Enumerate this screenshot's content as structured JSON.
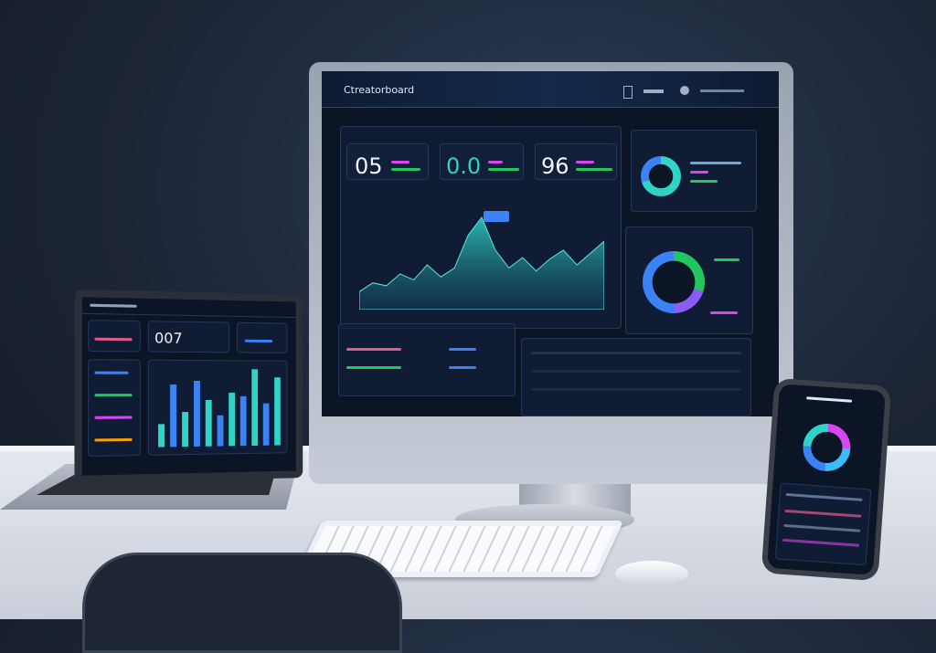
{
  "colors": {
    "screen_bg": "#0b1526",
    "accent_teal": "#2fd3c7",
    "accent_blue": "#3b82f6",
    "accent_pink": "#d946ef",
    "accent_purple": "#8b5cf6",
    "accent_green": "#22c55e"
  },
  "monitor": {
    "header": {
      "logo_text": "Ctreatorboard",
      "icons": [
        "notification-icon",
        "user-icon"
      ]
    },
    "kpis": [
      {
        "value": "05",
        "color": "#f0f4fa"
      },
      {
        "value": "0.0",
        "color": "#2fd3c7"
      },
      {
        "value": "96",
        "color": "#f0f4fa"
      }
    ],
    "area_chart": {
      "values": [
        12,
        18,
        16,
        24,
        20,
        30,
        22,
        28,
        50,
        62,
        40,
        28,
        35,
        26,
        34,
        40,
        30,
        38,
        46
      ]
    },
    "donut_top": {
      "slices": [
        {
          "value": 70,
          "color": "#2fd3c7"
        },
        {
          "value": 30,
          "color": "#3b82f6"
        }
      ]
    },
    "donut_bottom": {
      "slices": [
        {
          "value": 30,
          "color": "#22c55e"
        },
        {
          "value": 20,
          "color": "#8b5cf6"
        },
        {
          "value": 50,
          "color": "#3b82f6"
        }
      ]
    }
  },
  "laptop": {
    "kpi_value": "007",
    "bars": [
      30,
      80,
      45,
      85,
      60,
      40,
      70,
      65,
      100,
      55,
      90
    ],
    "bar_colors": [
      "#2fd3c7",
      "#3b82f6"
    ]
  },
  "phone": {
    "donut": {
      "slices": [
        {
          "value": 25,
          "color": "#d946ef"
        },
        {
          "value": 25,
          "color": "#38bdf8"
        },
        {
          "value": 25,
          "color": "#3b82f6"
        },
        {
          "value": 25,
          "color": "#2fd3c7"
        }
      ]
    }
  }
}
